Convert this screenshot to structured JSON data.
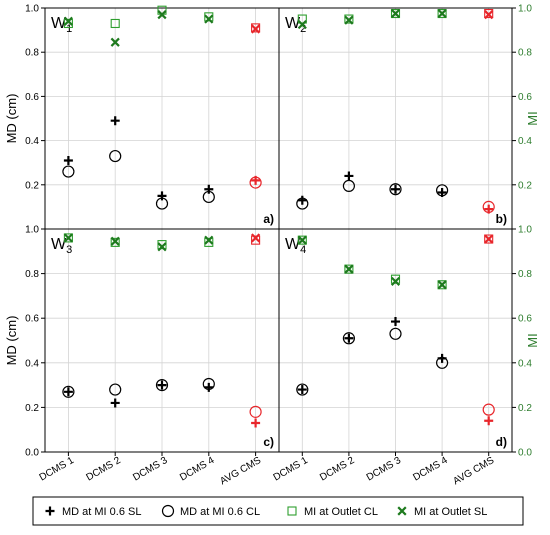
{
  "chart_data": {
    "type": "scatter",
    "categories": [
      "DCMS 1",
      "DCMS 2",
      "DCMS 3",
      "DCMS 4",
      "AVG CMS"
    ],
    "y_left": {
      "label": "MD (cm)",
      "ylim": [
        0,
        1.0
      ],
      "ticks": [
        "0.0",
        "0.2",
        "0.4",
        "0.6",
        "0.8",
        "1.0"
      ]
    },
    "y_right": {
      "label": "MI",
      "ylim": [
        0,
        1.0
      ],
      "ticks": [
        "0.0",
        "0.2",
        "0.4",
        "0.6",
        "0.8",
        "1.0"
      ],
      "color": "#2e7d2e"
    },
    "grid": true,
    "legend_placement": "bottom",
    "legend": [
      {
        "key": "md_sl",
        "label": "MD at MI 0.6 SL",
        "marker": "plus"
      },
      {
        "key": "md_cl",
        "label": "MD at MI 0.6 CL",
        "marker": "circle"
      },
      {
        "key": "mi_cl",
        "label": "MI at Outlet CL",
        "marker": "square"
      },
      {
        "key": "mi_sl",
        "label": "MI at Outlet SL",
        "marker": "x"
      }
    ],
    "colors": {
      "base": "#000000",
      "avg": "#e8262b",
      "mi_cl": "#2e9e2e",
      "mi_sl": "#1e7a1e"
    },
    "panels": [
      {
        "title_main": "W",
        "title_sub": "1",
        "tag": "a)",
        "md_sl": [
          0.31,
          0.49,
          0.15,
          0.18,
          0.22
        ],
        "md_cl": [
          0.26,
          0.33,
          0.115,
          0.145,
          0.21
        ],
        "mi_cl": [
          0.93,
          0.93,
          0.99,
          0.96,
          0.91
        ],
        "mi_sl": [
          0.94,
          0.845,
          0.97,
          0.95,
          0.905
        ]
      },
      {
        "title_main": "W",
        "title_sub": "2",
        "tag": "b)",
        "md_sl": [
          0.13,
          0.24,
          0.18,
          0.165,
          0.09
        ],
        "md_cl": [
          0.115,
          0.195,
          0.18,
          0.175,
          0.1
        ],
        "mi_cl": [
          0.95,
          0.95,
          0.975,
          0.975,
          0.975
        ],
        "mi_sl": [
          0.925,
          0.945,
          0.975,
          0.975,
          0.97
        ]
      },
      {
        "title_main": "W",
        "title_sub": "3",
        "tag": "c)",
        "md_sl": [
          0.27,
          0.22,
          0.3,
          0.29,
          0.13
        ],
        "md_cl": [
          0.27,
          0.28,
          0.3,
          0.305,
          0.18
        ],
        "mi_cl": [
          0.96,
          0.94,
          0.93,
          0.94,
          0.95
        ],
        "mi_sl": [
          0.96,
          0.945,
          0.92,
          0.95,
          0.96
        ]
      },
      {
        "title_main": "W",
        "title_sub": "4",
        "tag": "d)",
        "md_sl": [
          0.28,
          0.51,
          0.585,
          0.42,
          0.14
        ],
        "md_cl": [
          0.28,
          0.51,
          0.53,
          0.4,
          0.19
        ],
        "mi_cl": [
          0.95,
          0.82,
          0.775,
          0.75,
          0.955
        ],
        "mi_sl": [
          0.95,
          0.82,
          0.765,
          0.75,
          0.955
        ]
      }
    ]
  }
}
